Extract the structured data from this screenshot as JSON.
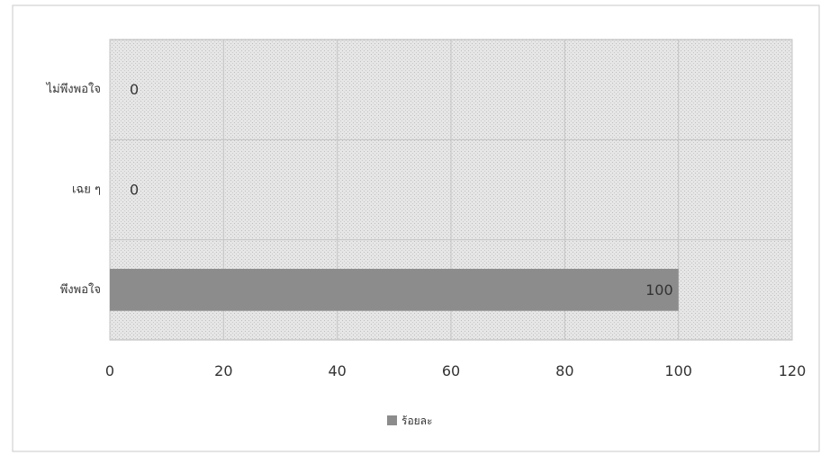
{
  "chart_data": {
    "type": "bar",
    "orientation": "horizontal",
    "categories": [
      "ไม่พึงพอใจ",
      "เฉย ๆ",
      "พึงพอใจ"
    ],
    "series": [
      {
        "name": "ร้อยละ",
        "values": [
          0,
          0,
          100
        ]
      }
    ],
    "data_labels": [
      "0",
      "0",
      "100"
    ],
    "xlim": [
      0,
      120
    ],
    "xticks": [
      0,
      20,
      40,
      60,
      80,
      100,
      120
    ],
    "grid": true,
    "legend_position": "bottom",
    "colors": {
      "bar": "#8c8c8c",
      "plot_bg": "#e2e2e2",
      "grid": "#c4c4c4",
      "frame": "#b5b5b5"
    }
  }
}
